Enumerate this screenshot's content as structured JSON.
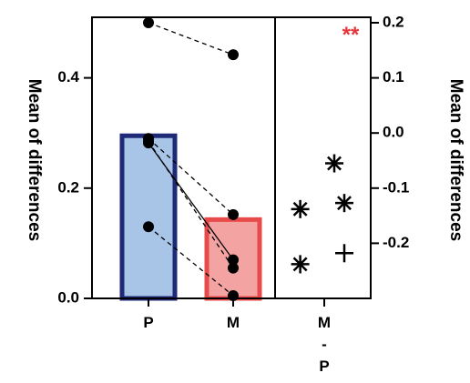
{
  "chart_data": [
    {
      "type": "bar",
      "ylabel": "Mean of differences",
      "ylim": [
        0,
        0.5
      ],
      "yticks": [
        0.0,
        0.2,
        0.4
      ],
      "ytick_labels": [
        "0.0",
        "0.2",
        "0.4"
      ],
      "categories": [
        "P",
        "M"
      ],
      "values": [
        0.295,
        0.143
      ],
      "bar_colors": {
        "P": {
          "fill": "#a8c4e6",
          "stroke": "#1e2a78"
        },
        "M": {
          "fill": "#f4a3a3",
          "stroke": "#e84a4a"
        }
      },
      "paired_points": [
        {
          "P": 0.5,
          "M": 0.442
        },
        {
          "P": 0.29,
          "M": 0.152
        },
        {
          "P": 0.282,
          "M": 0.07
        },
        {
          "P": 0.285,
          "M": 0.055
        },
        {
          "P": 0.13,
          "M": 0.005
        }
      ]
    },
    {
      "type": "scatter",
      "ylabel": "Mean of differences",
      "ylim": [
        -0.3,
        0.2
      ],
      "yticks": [
        0.2,
        0.1,
        0.0,
        -0.1,
        -0.2
      ],
      "ytick_labels": [
        "0.2",
        "0.1",
        "0.0",
        "-0.1",
        "-0.2"
      ],
      "category": "M - P",
      "category_lines": [
        "M",
        "-",
        "P"
      ],
      "points": [
        {
          "xoff": 0.5,
          "y": -0.055,
          "marker": "asterisk"
        },
        {
          "xoff": -1.2,
          "y": -0.138,
          "marker": "asterisk"
        },
        {
          "xoff": 1.0,
          "y": -0.127,
          "marker": "asterisk"
        },
        {
          "xoff": -1.2,
          "y": -0.238,
          "marker": "asterisk"
        },
        {
          "xoff": 1.0,
          "y": -0.218,
          "marker": "plus"
        }
      ],
      "annotation": "**",
      "annotation_color": "#e8353a"
    }
  ],
  "colors": {
    "axis": "#000000",
    "points": "#000000",
    "significance": "#e8353a"
  }
}
